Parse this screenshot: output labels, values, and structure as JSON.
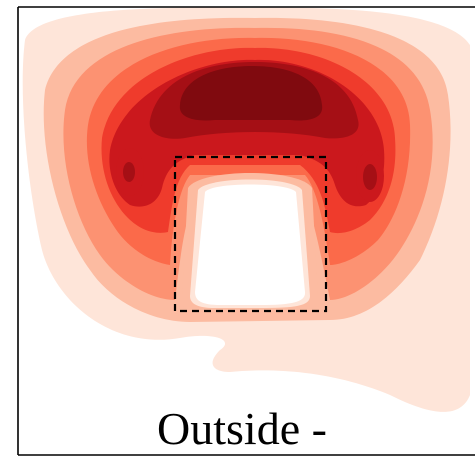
{
  "chart_data": {
    "type": "heatmap",
    "title": "",
    "xlabel": "",
    "ylabel": "",
    "colormap": "Reds",
    "levels": 9,
    "colorbar": false,
    "grid": false,
    "annotations": [
      {
        "text": "Outside -",
        "placement": "bottom-center"
      }
    ],
    "region_marker": {
      "label": "",
      "style": "dashed-rectangle",
      "stroke": "#000000"
    },
    "palette": [
      "#fee5d9",
      "#fcbba1",
      "#fc9272",
      "#fb6a4a",
      "#ef3b2c",
      "#cb181d",
      "#a50f15",
      "#800a0f"
    ]
  }
}
